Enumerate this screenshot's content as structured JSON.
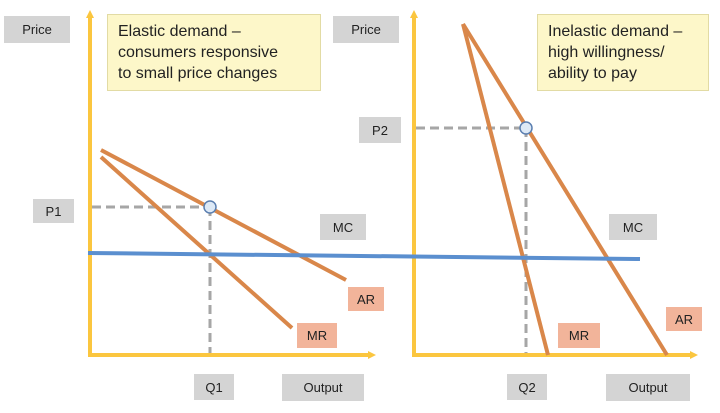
{
  "panels": [
    {
      "note": "Elastic demand –\nconsumers responsive\nto small price changes",
      "y_axis": "Price",
      "x_axis": "Output",
      "price_label": "P1",
      "quantity_label": "Q1",
      "mc_label": "MC",
      "ar_label": "AR",
      "mr_label": "MR"
    },
    {
      "note": "Inelastic demand –\nhigh willingness/\nability to pay",
      "y_axis": "Price",
      "x_axis": "Output",
      "price_label": "P2",
      "quantity_label": "Q2",
      "mc_label": "MC",
      "ar_label": "AR",
      "mr_label": "MR"
    }
  ],
  "colors": {
    "axis": "#fbc63f",
    "curves": "#d9874a",
    "mc_line": "#5b8fcf",
    "guides": "#a6a6a6",
    "point_fill": "#dde9f6",
    "point_stroke": "#5b7fb0",
    "label_grey": "#d4d4d4",
    "label_salmon": "#f2b49a",
    "note_bg": "#fdf7c9"
  }
}
